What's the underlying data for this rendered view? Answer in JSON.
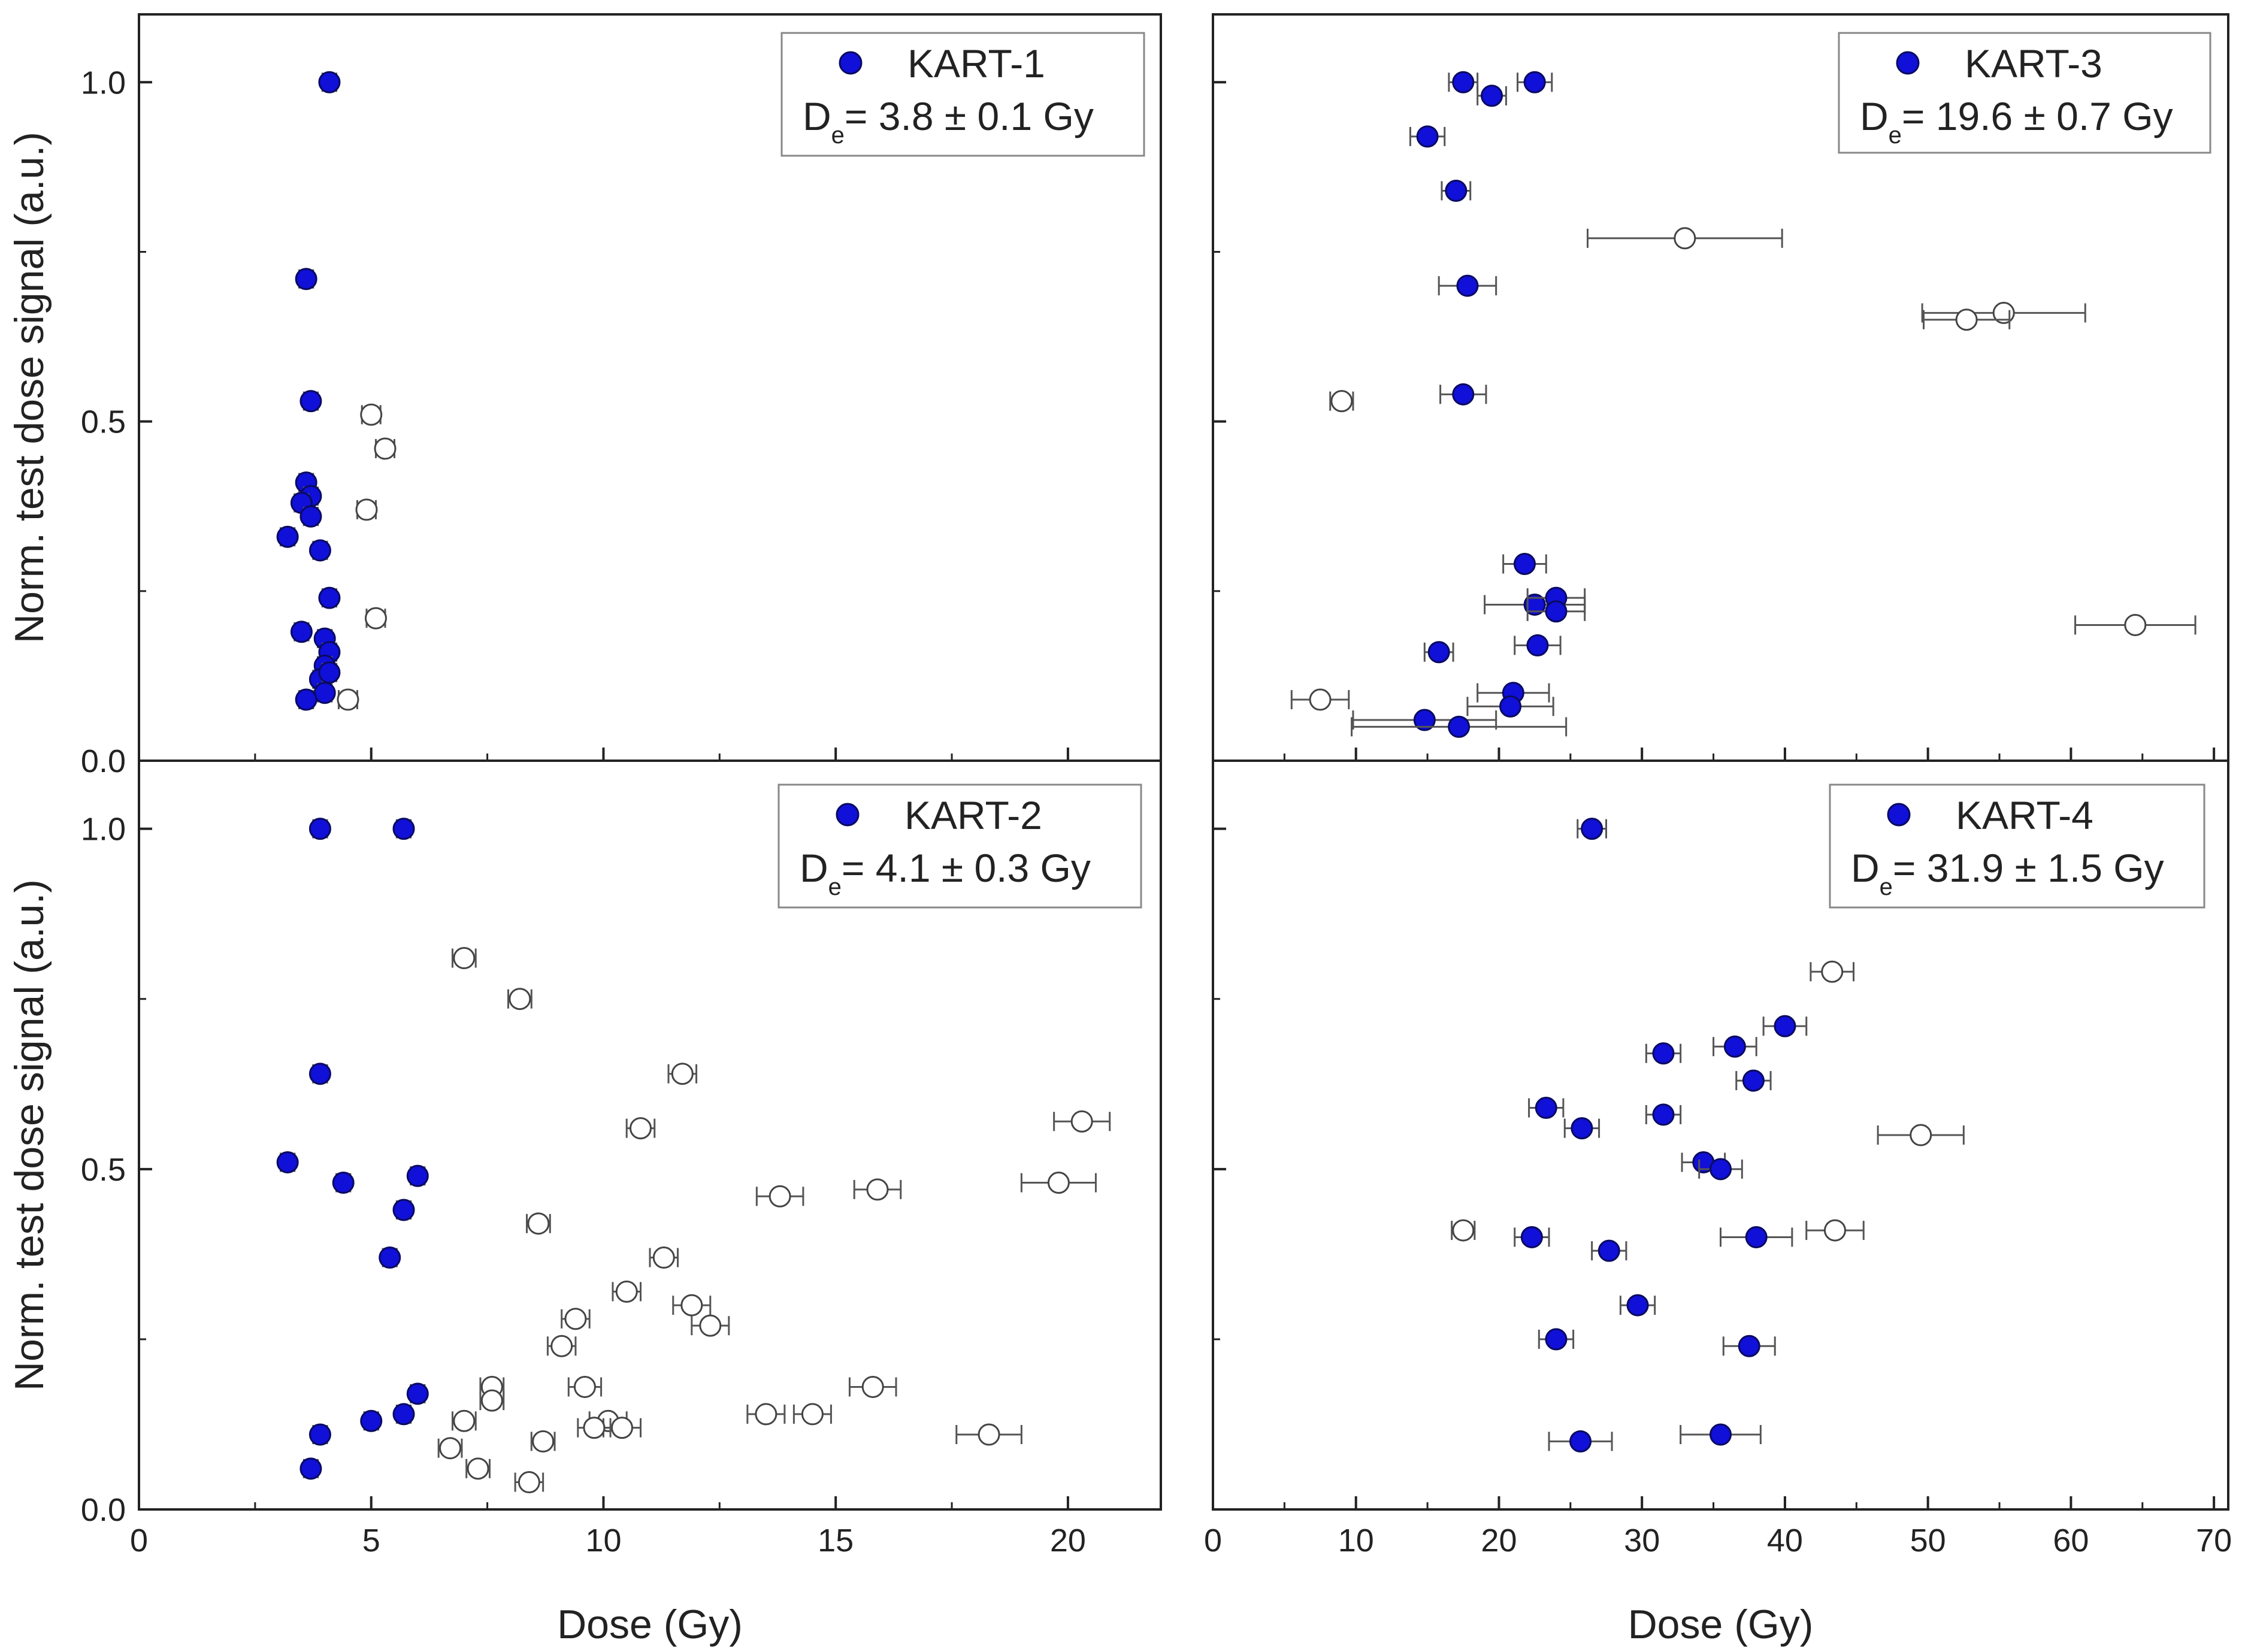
{
  "figure": {
    "shared_ylabel": "Norm. test dose signal (a.u.)",
    "shared_xlabel": "Dose (Gy)"
  },
  "colors": {
    "accepted_fill": "#1010d8",
    "accepted_stroke": "#0a0a60",
    "rejected_fill": "#ffffff",
    "rejected_stroke": "#444444",
    "errorbar": "#555555",
    "axis": "#222222",
    "legend_border": "#888888"
  },
  "chart_data": [
    {
      "id": "KART-1",
      "type": "scatter",
      "legend": {
        "marker_label": "KART-1",
        "de_text": "= 3.8 ± 0.1  Gy",
        "de_symbol": "D",
        "de_subscript": "e"
      },
      "xlabel": "",
      "ylabel": "Norm. test dose signal (a.u.)",
      "xlim": [
        0,
        22
      ],
      "ylim": [
        0,
        1.1
      ],
      "xticks": [
        0,
        5,
        10,
        15,
        20
      ],
      "xtick_labels": [
        "",
        "",
        "",
        "",
        ""
      ],
      "yticks": [
        0.0,
        0.5,
        1.0
      ],
      "ytick_labels": [
        "0.0",
        "0.5",
        "1.0"
      ],
      "series": [
        {
          "name": "accepted",
          "filled": true,
          "points": [
            [
              4.1,
              1.0,
              0.15
            ],
            [
              3.6,
              0.71,
              0.15
            ],
            [
              3.7,
              0.53,
              0.15
            ],
            [
              3.6,
              0.41,
              0.15
            ],
            [
              3.7,
              0.39,
              0.15
            ],
            [
              3.5,
              0.38,
              0.15
            ],
            [
              3.7,
              0.36,
              0.15
            ],
            [
              3.2,
              0.33,
              0.15
            ],
            [
              3.9,
              0.31,
              0.15
            ],
            [
              4.1,
              0.24,
              0.15
            ],
            [
              3.5,
              0.19,
              0.15
            ],
            [
              4.0,
              0.18,
              0.15
            ],
            [
              4.1,
              0.16,
              0.15
            ],
            [
              4.0,
              0.14,
              0.15
            ],
            [
              3.9,
              0.12,
              0.15
            ],
            [
              4.1,
              0.13,
              0.15
            ],
            [
              4.0,
              0.1,
              0.15
            ],
            [
              3.6,
              0.09,
              0.15
            ]
          ]
        },
        {
          "name": "rejected",
          "filled": false,
          "points": [
            [
              5.0,
              0.51,
              0.2
            ],
            [
              5.3,
              0.46,
              0.2
            ],
            [
              4.9,
              0.37,
              0.2
            ],
            [
              5.1,
              0.21,
              0.2
            ],
            [
              4.5,
              0.09,
              0.2
            ]
          ]
        }
      ]
    },
    {
      "id": "KART-3",
      "type": "scatter",
      "legend": {
        "marker_label": "KART-3",
        "de_text": "= 19.6 ± 0.7 Gy",
        "de_symbol": "D",
        "de_subscript": "e"
      },
      "xlabel": "",
      "ylabel": "",
      "xlim": [
        0,
        71
      ],
      "ylim": [
        0,
        1.1
      ],
      "xticks": [
        0,
        10,
        20,
        30,
        40,
        50,
        60,
        70
      ],
      "xtick_labels": [
        "",
        "",
        "",
        "",
        "",
        "",
        "",
        ""
      ],
      "yticks": [
        0.0,
        0.5,
        1.0
      ],
      "ytick_labels": [
        "",
        "",
        ""
      ],
      "series": [
        {
          "name": "accepted",
          "filled": true,
          "points": [
            [
              17.5,
              1.0,
              1.0
            ],
            [
              22.5,
              1.0,
              1.2
            ],
            [
              19.5,
              0.98,
              1.0
            ],
            [
              15.0,
              0.92,
              1.2
            ],
            [
              17.0,
              0.84,
              1.0
            ],
            [
              17.8,
              0.7,
              2.0
            ],
            [
              17.5,
              0.54,
              1.6
            ],
            [
              21.8,
              0.29,
              1.5
            ],
            [
              22.5,
              0.23,
              3.5
            ],
            [
              24.0,
              0.24,
              2.0
            ],
            [
              24.0,
              0.22,
              2.0
            ],
            [
              22.7,
              0.17,
              1.6
            ],
            [
              15.8,
              0.16,
              1.0
            ],
            [
              21.0,
              0.1,
              2.5
            ],
            [
              20.8,
              0.08,
              3.0
            ],
            [
              14.8,
              0.06,
              5.0
            ],
            [
              17.2,
              0.05,
              7.5
            ]
          ]
        },
        {
          "name": "rejected",
          "filled": false,
          "points": [
            [
              33.0,
              0.77,
              6.8
            ],
            [
              55.3,
              0.66,
              5.7
            ],
            [
              52.7,
              0.65,
              3.0
            ],
            [
              9.0,
              0.53,
              0.8
            ],
            [
              64.5,
              0.2,
              4.2
            ],
            [
              7.5,
              0.09,
              2.0
            ]
          ]
        }
      ]
    },
    {
      "id": "KART-2",
      "type": "scatter",
      "legend": {
        "marker_label": "KART-2",
        "de_text": "= 4.1 ± 0.3  Gy",
        "de_symbol": "D",
        "de_subscript": "e"
      },
      "xlabel": "Dose (Gy)",
      "ylabel": "Norm. test dose signal (a.u.)",
      "xlim": [
        0,
        22
      ],
      "ylim": [
        0,
        1.1
      ],
      "xticks": [
        0,
        5,
        10,
        15,
        20
      ],
      "xtick_labels": [
        "0",
        "5",
        "10",
        "15",
        "20"
      ],
      "yticks": [
        0.0,
        0.5,
        1.0
      ],
      "ytick_labels": [
        "0.0",
        "0.5",
        "1.0"
      ],
      "series": [
        {
          "name": "accepted",
          "filled": true,
          "points": [
            [
              3.9,
              1.0,
              0.15
            ],
            [
              5.7,
              1.0,
              0.15
            ],
            [
              3.9,
              0.64,
              0.15
            ],
            [
              3.2,
              0.51,
              0.15
            ],
            [
              4.4,
              0.48,
              0.15
            ],
            [
              6.0,
              0.49,
              0.15
            ],
            [
              5.7,
              0.44,
              0.15
            ],
            [
              5.4,
              0.37,
              0.15
            ],
            [
              6.0,
              0.17,
              0.15
            ],
            [
              5.7,
              0.14,
              0.15
            ],
            [
              5.0,
              0.13,
              0.15
            ],
            [
              3.9,
              0.11,
              0.15
            ],
            [
              3.7,
              0.06,
              0.15
            ]
          ]
        },
        {
          "name": "rejected",
          "filled": false,
          "points": [
            [
              7.0,
              0.81,
              0.25
            ],
            [
              8.2,
              0.75,
              0.25
            ],
            [
              11.7,
              0.64,
              0.3
            ],
            [
              10.8,
              0.56,
              0.3
            ],
            [
              20.3,
              0.57,
              0.6
            ],
            [
              19.8,
              0.48,
              0.8
            ],
            [
              15.9,
              0.47,
              0.5
            ],
            [
              13.8,
              0.46,
              0.5
            ],
            [
              8.6,
              0.42,
              0.25
            ],
            [
              11.3,
              0.37,
              0.3
            ],
            [
              10.5,
              0.32,
              0.3
            ],
            [
              11.9,
              0.3,
              0.4
            ],
            [
              12.3,
              0.27,
              0.4
            ],
            [
              9.4,
              0.28,
              0.3
            ],
            [
              9.1,
              0.24,
              0.3
            ],
            [
              9.6,
              0.18,
              0.35
            ],
            [
              15.8,
              0.18,
              0.5
            ],
            [
              7.6,
              0.18,
              0.25
            ],
            [
              7.6,
              0.16,
              0.25
            ],
            [
              7.0,
              0.13,
              0.25
            ],
            [
              10.1,
              0.13,
              0.4
            ],
            [
              10.4,
              0.12,
              0.4
            ],
            [
              9.8,
              0.12,
              0.35
            ],
            [
              13.5,
              0.14,
              0.4
            ],
            [
              14.5,
              0.14,
              0.4
            ],
            [
              18.3,
              0.11,
              0.7
            ],
            [
              6.7,
              0.09,
              0.25
            ],
            [
              8.7,
              0.1,
              0.25
            ],
            [
              7.3,
              0.06,
              0.25
            ],
            [
              8.4,
              0.04,
              0.3
            ]
          ]
        }
      ]
    },
    {
      "id": "KART-4",
      "type": "scatter",
      "legend": {
        "marker_label": "KART-4",
        "de_text": "= 31.9 ± 1.5  Gy",
        "de_symbol": "D",
        "de_subscript": "e"
      },
      "xlabel": "Dose (Gy)",
      "ylabel": "",
      "xlim": [
        0,
        71
      ],
      "ylim": [
        0,
        1.1
      ],
      "xticks": [
        0,
        10,
        20,
        30,
        40,
        50,
        60,
        70
      ],
      "xtick_labels": [
        "0",
        "10",
        "20",
        "30",
        "40",
        "50",
        "60",
        "70"
      ],
      "yticks": [
        0.0,
        0.5,
        1.0
      ],
      "ytick_labels": [
        "",
        "",
        ""
      ],
      "series": [
        {
          "name": "accepted",
          "filled": true,
          "points": [
            [
              26.5,
              1.0,
              1.0
            ],
            [
              40.0,
              0.71,
              1.5
            ],
            [
              36.5,
              0.68,
              1.5
            ],
            [
              31.5,
              0.67,
              1.2
            ],
            [
              37.8,
              0.63,
              1.2
            ],
            [
              23.3,
              0.59,
              1.2
            ],
            [
              31.5,
              0.58,
              1.2
            ],
            [
              25.8,
              0.56,
              1.2
            ],
            [
              34.3,
              0.51,
              1.5
            ],
            [
              35.5,
              0.5,
              1.5
            ],
            [
              22.3,
              0.4,
              1.2
            ],
            [
              38.0,
              0.4,
              2.5
            ],
            [
              27.7,
              0.38,
              1.2
            ],
            [
              29.7,
              0.3,
              1.2
            ],
            [
              24.0,
              0.25,
              1.2
            ],
            [
              37.5,
              0.24,
              1.8
            ],
            [
              25.7,
              0.1,
              2.2
            ],
            [
              35.5,
              0.11,
              2.8
            ]
          ]
        },
        {
          "name": "rejected",
          "filled": false,
          "points": [
            [
              43.3,
              0.79,
              1.5
            ],
            [
              49.5,
              0.55,
              3.0
            ],
            [
              17.5,
              0.41,
              0.8
            ],
            [
              43.5,
              0.41,
              2.0
            ]
          ]
        }
      ]
    }
  ]
}
